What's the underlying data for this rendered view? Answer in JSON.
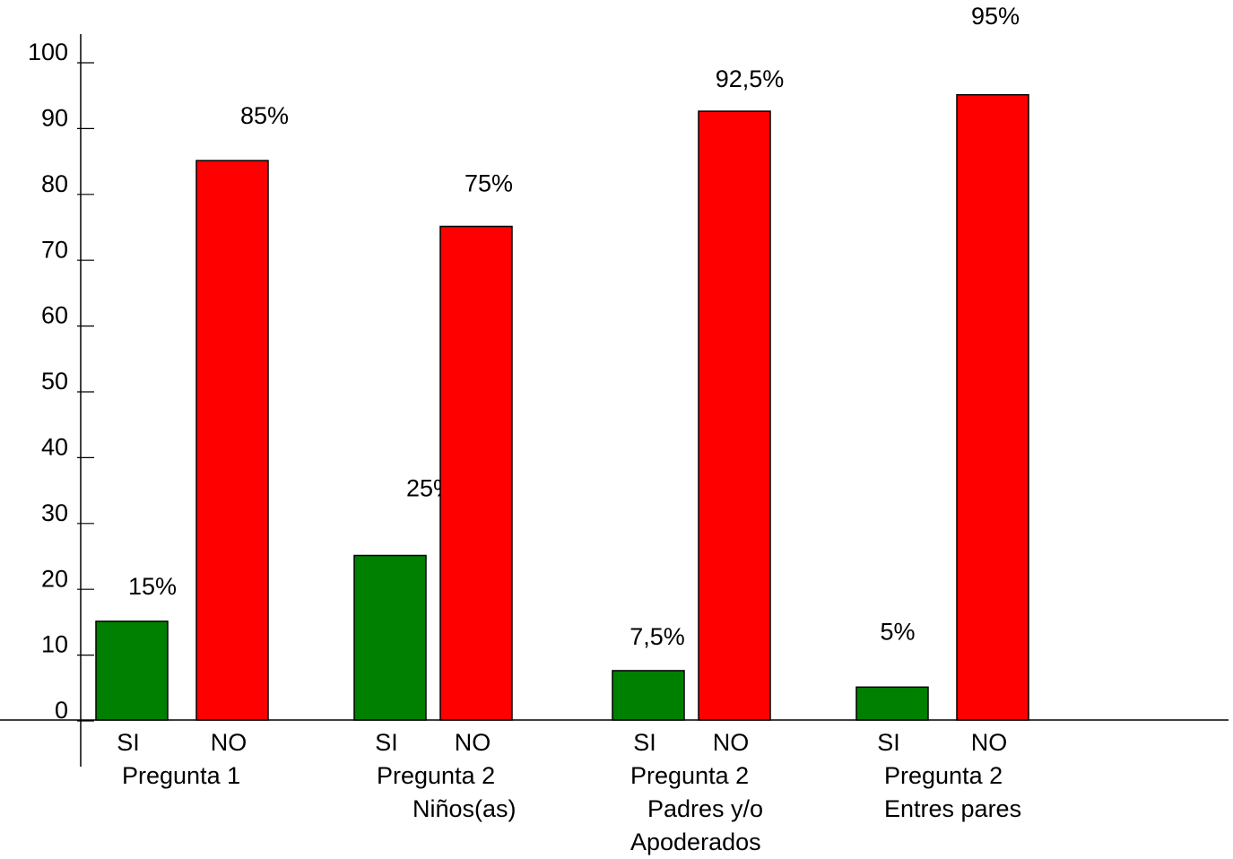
{
  "chart_data": {
    "type": "bar",
    "categories": [
      [
        "Pregunta 1"
      ],
      [
        "Pregunta 2",
        "Niños(as)"
      ],
      [
        "Pregunta 2",
        "Padres y/o",
        "Apoderados"
      ],
      [
        "Pregunta 2",
        "Entres pares"
      ]
    ],
    "series": [
      {
        "name": "SI",
        "color": "#008000",
        "values": [
          15,
          25,
          7.5,
          5
        ],
        "value_labels": [
          "15%",
          "25%",
          "7,5%",
          "5%"
        ]
      },
      {
        "name": "NO",
        "color": "#ff0000",
        "values": [
          85,
          75,
          92.5,
          95
        ],
        "value_labels": [
          "85%",
          "75%",
          "92,5%",
          "95%"
        ]
      }
    ],
    "ylim": [
      0,
      100
    ],
    "yticks": [
      0,
      10,
      20,
      30,
      40,
      50,
      60,
      70,
      80,
      90,
      100
    ]
  }
}
